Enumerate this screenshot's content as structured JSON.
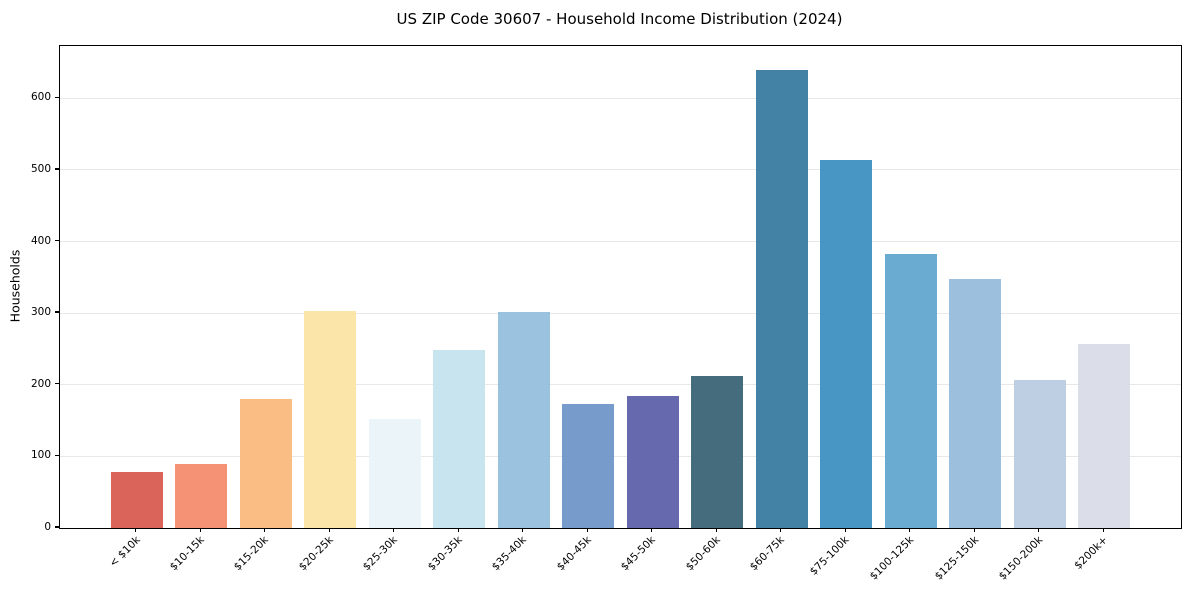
{
  "chart_data": {
    "type": "bar",
    "title": "US ZIP Code 30607 - Household Income Distribution (2024)",
    "xlabel": "",
    "ylabel": "Households",
    "categories": [
      "< $10k",
      "$10-15k",
      "$15-20k",
      "$20-25k",
      "$25-30k",
      "$30-35k",
      "$35-40k",
      "$40-45k",
      "$45-50k",
      "$50-60k",
      "$60-75k",
      "$75-100k",
      "$100-125k",
      "$125-150k",
      "$150-200k",
      "$200k+"
    ],
    "values": [
      78,
      90,
      180,
      303,
      152,
      249,
      302,
      173,
      184,
      212,
      640,
      514,
      382,
      347,
      207,
      257
    ],
    "bar_colors": [
      "#d7574d",
      "#f48a6c",
      "#fab97c",
      "#fce3a2",
      "#e9f3f7",
      "#c3e2ee",
      "#93bede",
      "#6d93c6",
      "#5a5ea8",
      "#366173",
      "#35789e",
      "#3a8ec0",
      "#5fa6cd",
      "#94badb",
      "#b9cbe2",
      "#d8dae7"
    ],
    "yticks": [
      0,
      100,
      200,
      300,
      400,
      500,
      600
    ],
    "ylim": [
      0,
      673
    ],
    "grid": "horizontal",
    "grid_color": "#e8e8e8",
    "axis_color": "#000000",
    "background_color": "#ffffff",
    "legend": null
  }
}
